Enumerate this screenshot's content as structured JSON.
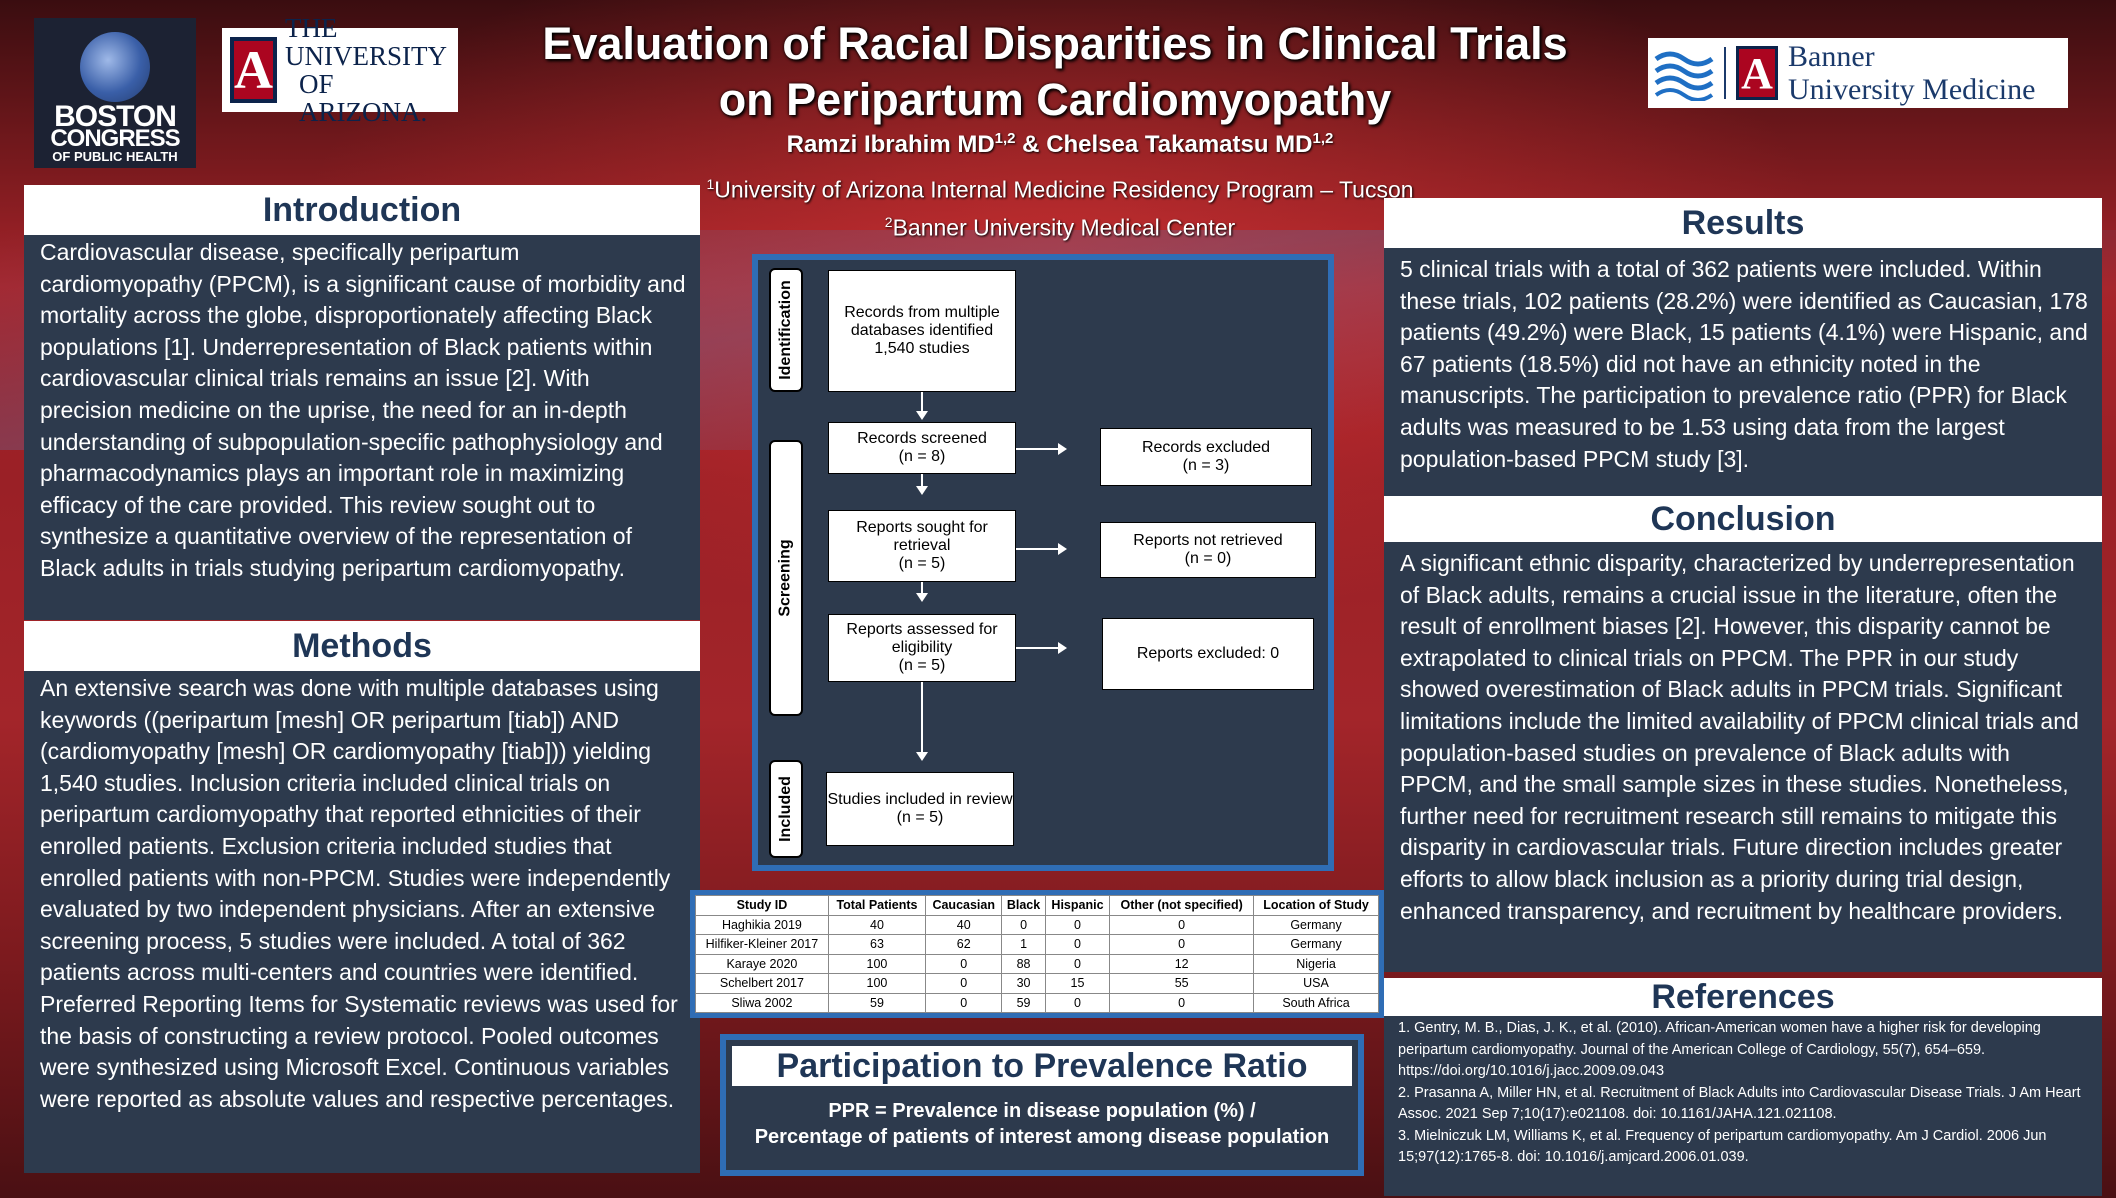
{
  "header": {
    "title_line1": "Evaluation of Racial Disparities in Clinical Trials",
    "title_line2": "on Peripartum Cardiomyopathy",
    "author1": "Ramzi Ibrahim MD",
    "author1_sup": "1,2",
    "author_sep": " & ",
    "author2": "Chelsea Takamatsu MD",
    "author2_sup": "1,2",
    "affil1_sup": "1",
    "affil1": "University of Arizona Internal Medicine Residency Program – Tucson",
    "affil2_sup": "2",
    "affil2": "Banner University Medical Center"
  },
  "logos": {
    "bcph_line1": "BOSTON",
    "bcph_line2": "CONGRESS",
    "bcph_line3": "OF PUBLIC HEALTH",
    "ua_line1": "THE UNIVERSITY",
    "ua_line2": "OF ARIZONA.",
    "ua_mark": "A",
    "banner_mark": "A",
    "banner_line1": "Banner",
    "banner_line2": "University Medicine"
  },
  "introduction": {
    "heading": "Introduction",
    "body": "Cardiovascular disease, specifically peripartum cardiomyopathy (PPCM), is a significant cause of morbidity and mortality across the globe, disproportionately affecting Black populations [1]. Underrepresentation of Black patients within cardiovascular clinical trials remains an issue [2]. With precision medicine on the uprise, the need for an in-depth understanding of subpopulation-specific pathophysiology and pharmacodynamics plays an important role in maximizing efficacy of the care provided. This review sought out to synthesize a quantitative overview of the representation of Black adults in trials studying peripartum cardiomyopathy."
  },
  "methods": {
    "heading": "Methods",
    "body": "An extensive search was done with multiple databases using keywords ((peripartum [mesh] OR peripartum [tiab]) AND (cardiomyopathy [mesh] OR cardiomyopathy [tiab])) yielding 1,540 studies. Inclusion criteria included clinical trials on peripartum cardiomyopathy that reported ethnicities of their enrolled patients. Exclusion criteria included studies that enrolled patients with non-PPCM. Studies were independently evaluated by two independent physicians. After an extensive screening process, 5 studies were included. A total of 362 patients across multi-centers and countries were identified. Preferred Reporting Items for Systematic reviews was used for the basis of constructing a review protocol. Pooled outcomes were synthesized using Microsoft Excel. Continuous variables were reported as absolute values and respective percentages."
  },
  "flow": {
    "stage_identification": "Identification",
    "stage_screening": "Screening",
    "stage_included": "Included",
    "records_identified": "Records from multiple databases identified 1,540 studies",
    "records_screened": "Records screened",
    "records_screened_n": "(n = 8)",
    "records_excluded": "Records excluded",
    "records_excluded_n": "(n = 3)",
    "reports_sought": "Reports sought for retrieval",
    "reports_sought_n": "(n = 5)",
    "reports_not_retrieved": "Reports not retrieved",
    "reports_not_retrieved_n": "(n = 0)",
    "reports_assessed": "Reports assessed for eligibility",
    "reports_assessed_n": "(n = 5)",
    "reports_excluded": "Reports excluded: 0",
    "studies_included": "Studies included in review",
    "studies_included_n": "(n = 5)"
  },
  "table": {
    "columns": [
      "Study ID",
      "Total Patients",
      "Caucasian",
      "Black",
      "Hispanic",
      "Other (not specified)",
      "Location of Study"
    ],
    "rows": [
      [
        "Haghikia 2019",
        "40",
        "40",
        "0",
        "0",
        "0",
        "Germany"
      ],
      [
        "Hilfiker-Kleiner 2017",
        "63",
        "62",
        "1",
        "0",
        "0",
        "Germany"
      ],
      [
        "Karaye 2020",
        "100",
        "0",
        "88",
        "0",
        "12",
        "Nigeria"
      ],
      [
        "Schelbert 2017",
        "100",
        "0",
        "30",
        "15",
        "55",
        "USA"
      ],
      [
        "Sliwa 2002",
        "59",
        "0",
        "59",
        "0",
        "0",
        "South Africa"
      ]
    ]
  },
  "ppr": {
    "heading": "Participation to Prevalence Ratio",
    "line1": "PPR = Prevalence in disease population (%) /",
    "line2": "Percentage of patients of interest among disease population"
  },
  "results": {
    "heading": "Results",
    "body": "5 clinical trials with a total of 362 patients were included. Within these trials, 102 patients (28.2%) were identified as Caucasian, 178 patients (49.2%) were Black, 15 patients (4.1%) were Hispanic, and 67 patients (18.5%) did not have an ethnicity noted in the manuscripts. The participation to prevalence ratio (PPR) for Black adults was measured to be 1.53 using data from the largest population-based PPCM study [3]."
  },
  "conclusion": {
    "heading": "Conclusion",
    "body": "A significant ethnic disparity, characterized by underrepresentation of Black adults, remains a crucial issue in the literature, often the result of enrollment biases [2]. However, this disparity cannot be extrapolated to clinical trials on PPCM. The PPR in our study showed overestimation of Black adults in PPCM trials. Significant limitations include the limited availability of PPCM clinical trials and population-based studies on prevalence of Black adults with PPCM, and the small sample sizes in these studies. Nonetheless, further need for recruitment research still remains to mitigate this disparity in cardiovascular trials. Future direction includes greater efforts to allow black inclusion as a priority during trial design, enhanced transparency, and recruitment by healthcare providers."
  },
  "references": {
    "heading": "References",
    "items": [
      "1. Gentry, M. B., Dias, J. K., et al. (2010). African-American women have a higher risk for developing peripartum cardiomyopathy. Journal of the American College of Cardiology, 55(7), 654–659. https://doi.org/10.1016/j.jacc.2009.09.043",
      "2. Prasanna A, Miller HN, et al. Recruitment of Black Adults into Cardiovascular Disease Trials. J Am Heart Assoc. 2021 Sep 7;10(17):e021108. doi: 10.1161/JAHA.121.021108.",
      "3. Mielniczuk LM, Williams K, et al. Frequency of peripartum cardiomyopathy. Am J Cardiol. 2006 Jun 15;97(12):1765-8. doi: 10.1016/j.amjcard.2006.01.039."
    ]
  }
}
